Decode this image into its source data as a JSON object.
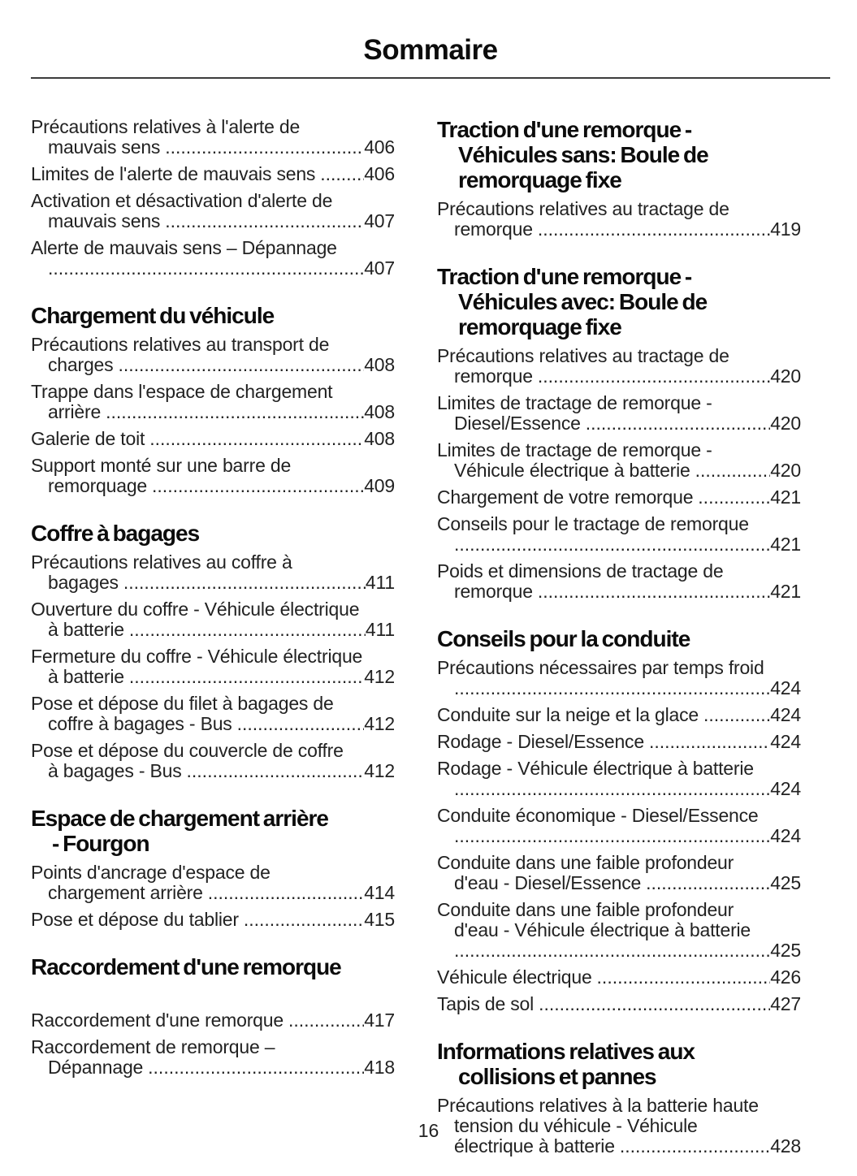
{
  "page_title": "Sommaire",
  "footer": {
    "page_number": "16"
  },
  "colors": {
    "text": "#222222",
    "heading": "#0c0c0c",
    "rule": "#3c3c3c",
    "background": "#ffffff"
  },
  "toc": {
    "columns": [
      {
        "sections": [
          {
            "heading_lines": [],
            "gap_after_heading": false,
            "entries": [
              {
                "lines": [
                  "Précautions relatives à l'alerte de",
                  "mauvais sens"
                ],
                "page": "406"
              },
              {
                "lines": [
                  "Limites de l'alerte de mauvais sens"
                ],
                "page": "406"
              },
              {
                "lines": [
                  "Activation et désactivation d'alerte de",
                  "mauvais sens"
                ],
                "page": "407"
              },
              {
                "lines": [
                  "Alerte de mauvais sens – Dépannage",
                  ""
                ],
                "page": "407"
              }
            ]
          },
          {
            "heading_lines": [
              "Chargement du véhicule"
            ],
            "gap_after_heading": false,
            "entries": [
              {
                "lines": [
                  "Précautions relatives au transport de",
                  "charges"
                ],
                "page": "408"
              },
              {
                "lines": [
                  "Trappe dans l'espace de chargement",
                  "arrière"
                ],
                "page": "408"
              },
              {
                "lines": [
                  "Galerie de toit"
                ],
                "page": "408"
              },
              {
                "lines": [
                  "Support monté sur une barre de",
                  "remorquage"
                ],
                "page": "409"
              }
            ]
          },
          {
            "heading_lines": [
              "Coffre à bagages"
            ],
            "gap_after_heading": false,
            "entries": [
              {
                "lines": [
                  "Précautions relatives au coffre à",
                  "bagages"
                ],
                "page": "411"
              },
              {
                "lines": [
                  "Ouverture du coffre - Véhicule électrique",
                  "à batterie"
                ],
                "page": "411"
              },
              {
                "lines": [
                  "Fermeture du coffre - Véhicule électrique",
                  "à batterie"
                ],
                "page": "412"
              },
              {
                "lines": [
                  "Pose et dépose du filet à bagages de",
                  "coffre à bagages - Bus"
                ],
                "page": "412"
              },
              {
                "lines": [
                  "Pose et dépose du couvercle de coffre",
                  "à bagages - Bus"
                ],
                "page": "412"
              }
            ]
          },
          {
            "heading_lines": [
              "Espace de chargement arrière",
              "- Fourgon"
            ],
            "gap_after_heading": false,
            "entries": [
              {
                "lines": [
                  "Points d'ancrage d'espace de",
                  "chargement arrière"
                ],
                "page": "414"
              },
              {
                "lines": [
                  "Pose et dépose du tablier"
                ],
                "page": "415"
              }
            ]
          },
          {
            "heading_lines": [
              "Raccordement d'une remorque"
            ],
            "gap_after_heading": true,
            "entries": [
              {
                "lines": [
                  "Raccordement d'une remorque"
                ],
                "page": "417"
              },
              {
                "lines": [
                  "Raccordement de remorque –",
                  "Dépannage"
                ],
                "page": "418"
              }
            ]
          }
        ]
      },
      {
        "sections": [
          {
            "heading_lines": [
              "Traction d'une remorque -",
              "Véhicules sans: Boule de",
              "remorquage fixe"
            ],
            "gap_after_heading": false,
            "entries": [
              {
                "lines": [
                  "Précautions relatives au tractage de",
                  "remorque"
                ],
                "page": "419"
              }
            ]
          },
          {
            "heading_lines": [
              "Traction d'une remorque -",
              "Véhicules avec: Boule de",
              "remorquage fixe"
            ],
            "gap_after_heading": false,
            "entries": [
              {
                "lines": [
                  "Précautions relatives au tractage de",
                  "remorque"
                ],
                "page": "420"
              },
              {
                "lines": [
                  "Limites de tractage de remorque -",
                  "Diesel/Essence"
                ],
                "page": "420"
              },
              {
                "lines": [
                  "Limites de tractage de remorque -",
                  "Véhicule électrique à batterie"
                ],
                "page": "420"
              },
              {
                "lines": [
                  "Chargement de votre remorque"
                ],
                "page": "421"
              },
              {
                "lines": [
                  "Conseils pour le tractage de remorque",
                  ""
                ],
                "page": "421"
              },
              {
                "lines": [
                  "Poids et dimensions de tractage de",
                  "remorque"
                ],
                "page": "421"
              }
            ]
          },
          {
            "heading_lines": [
              "Conseils pour la conduite"
            ],
            "gap_after_heading": false,
            "entries": [
              {
                "lines": [
                  "Précautions nécessaires par temps froid",
                  ""
                ],
                "page": "424"
              },
              {
                "lines": [
                  "Conduite sur la neige et la glace"
                ],
                "page": "424"
              },
              {
                "lines": [
                  "Rodage - Diesel/Essence"
                ],
                "page": "424"
              },
              {
                "lines": [
                  "Rodage - Véhicule électrique à batterie",
                  ""
                ],
                "page": "424"
              },
              {
                "lines": [
                  "Conduite économique - Diesel/Essence",
                  ""
                ],
                "page": "424"
              },
              {
                "lines": [
                  "Conduite dans une faible profondeur",
                  "d'eau - Diesel/Essence"
                ],
                "page": "425"
              },
              {
                "lines": [
                  "Conduite dans une faible profondeur",
                  "d'eau - Véhicule électrique à batterie",
                  ""
                ],
                "page": "425"
              },
              {
                "lines": [
                  "Véhicule électrique"
                ],
                "page": "426"
              },
              {
                "lines": [
                  "Tapis de sol"
                ],
                "page": "427"
              }
            ]
          },
          {
            "heading_lines": [
              "Informations relatives aux",
              "collisions et pannes"
            ],
            "gap_after_heading": false,
            "entries": [
              {
                "lines": [
                  "Précautions relatives à la batterie haute",
                  "tension du véhicule - Véhicule",
                  "électrique à batterie"
                ],
                "page": "428"
              }
            ]
          }
        ]
      }
    ]
  }
}
